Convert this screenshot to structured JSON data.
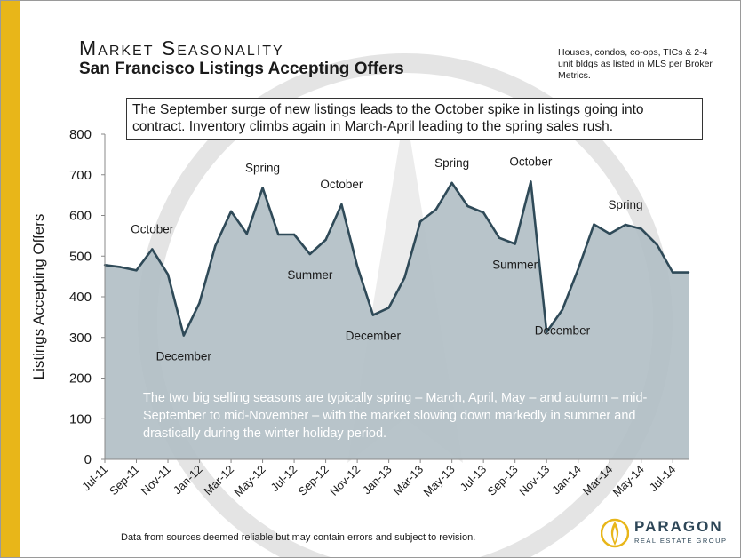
{
  "title": "Market Seasonality",
  "subtitle": "San Francisco Listings Accepting Offers",
  "source_note": "Houses, condos, co-ops, TICs & 2-4 unit bldgs as listed in MLS per Broker Metrics.",
  "callout": "The September surge of new listings leads to the October spike in listings going into contract. Inventory climbs again in March-April leading to the spring sales rush.",
  "inner_note": "The two big selling seasons are typically spring – March, April, May – and autumn – mid-September to mid-November – with the market slowing down markedly in summer and drastically during the winter holiday period.",
  "footer": "Data from sources deemed reliable but may contain errors and subject to revision.",
  "logo": {
    "name": "PARAGON",
    "tagline": "REAL ESTATE GROUP"
  },
  "colors": {
    "accent_bar": "#e8b619",
    "area_fill": "#b3bfc6",
    "area_line": "#2f4a58"
  },
  "chart_data": {
    "type": "area",
    "ylabel": "Listings Accepting Offers",
    "xlabel": "",
    "ylim": [
      0,
      800
    ],
    "yticks": [
      0,
      100,
      200,
      300,
      400,
      500,
      600,
      700,
      800
    ],
    "grid": false,
    "x": [
      "Jul-11",
      "Aug-11",
      "Sep-11",
      "Oct-11",
      "Nov-11",
      "Dec-11",
      "Jan-12",
      "Feb-12",
      "Mar-12",
      "Apr-12",
      "May-12",
      "Jun-12",
      "Jul-12",
      "Aug-12",
      "Sep-12",
      "Oct-12",
      "Nov-12",
      "Dec-12",
      "Jan-13",
      "Feb-13",
      "Mar-13",
      "Apr-13",
      "May-13",
      "Jun-13",
      "Jul-13",
      "Aug-13",
      "Sep-13",
      "Oct-13",
      "Nov-13",
      "Dec-13",
      "Jan-14",
      "Feb-14",
      "Mar-14",
      "Apr-14",
      "May-14",
      "Jun-14",
      "Jul-14",
      "Aug-14"
    ],
    "xtick_labels": [
      "Jul-11",
      "Sep-11",
      "Nov-11",
      "Jan-12",
      "Mar-12",
      "May-12",
      "Jul-12",
      "Sep-12",
      "Nov-12",
      "Jan-13",
      "Mar-13",
      "May-13",
      "Jul-13",
      "Sep-13",
      "Nov-13",
      "Jan-14",
      "Mar-14",
      "May-14",
      "Jul-14"
    ],
    "values": [
      478,
      473,
      465,
      517,
      455,
      305,
      385,
      525,
      610,
      555,
      668,
      553,
      553,
      505,
      540,
      627,
      475,
      355,
      373,
      447,
      585,
      615,
      680,
      623,
      607,
      545,
      530,
      683,
      313,
      368,
      468,
      578,
      555,
      577,
      567,
      528,
      460,
      460
    ],
    "annotations": [
      {
        "text": "October",
        "x": "Oct-11",
        "pos": "above"
      },
      {
        "text": "December",
        "x": "Dec-11",
        "pos": "below"
      },
      {
        "text": "Spring",
        "x": "May-12",
        "pos": "above"
      },
      {
        "text": "Summer",
        "x": "Aug-12",
        "pos": "below"
      },
      {
        "text": "October",
        "x": "Oct-12",
        "pos": "above"
      },
      {
        "text": "December",
        "x": "Dec-12",
        "pos": "below"
      },
      {
        "text": "Spring",
        "x": "May-13",
        "pos": "above"
      },
      {
        "text": "Summer",
        "x": "Sep-13",
        "pos": "below"
      },
      {
        "text": "October",
        "x": "Oct-13",
        "pos": "above"
      },
      {
        "text": "December",
        "x": "Dec-13",
        "pos": "below"
      },
      {
        "text": "Spring",
        "x": "Apr-14",
        "pos": "above"
      }
    ]
  }
}
